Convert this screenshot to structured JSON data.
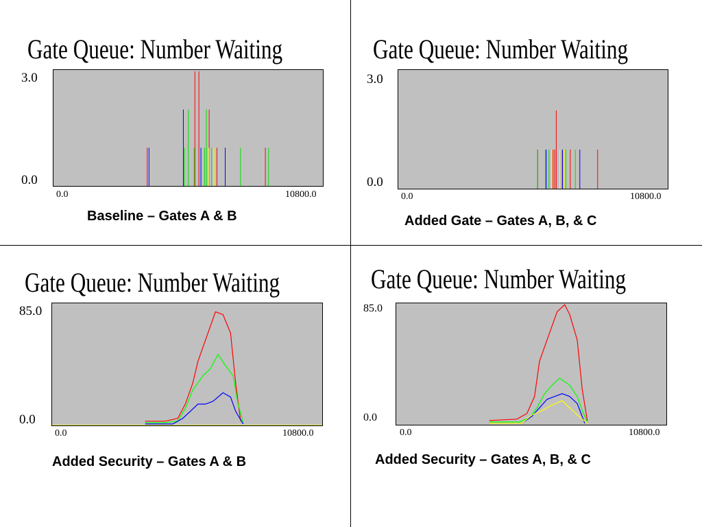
{
  "chart_data": [
    {
      "type": "line",
      "style": "spikes",
      "title": "Gate Queue: Number Waiting",
      "caption": "Baseline – Gates A & B",
      "ytick_top": "3.0",
      "ytick_bottom": "0.0",
      "xtick_left": "0.0",
      "xtick_right": "10800.0",
      "xlim": [
        0,
        10800
      ],
      "ylim": [
        0,
        3
      ],
      "series": [
        {
          "color": "#ff0000",
          "spikes": [
            [
              3740,
              1
            ],
            [
              5640,
              3
            ],
            [
              5800,
              3
            ],
            [
              6210,
              2
            ],
            [
              6520,
              1
            ],
            [
              8450,
              1
            ]
          ]
        },
        {
          "color": "#00e000",
          "spikes": [
            [
              5220,
              1
            ],
            [
              5380,
              2
            ],
            [
              5610,
              1
            ],
            [
              6030,
              1
            ],
            [
              6100,
              2
            ],
            [
              6310,
              1
            ],
            [
              7460,
              1
            ],
            [
              8580,
              1
            ]
          ]
        },
        {
          "color": "#0000ff",
          "spikes": [
            [
              3810,
              1
            ],
            [
              5180,
              2
            ],
            [
              5880,
              1
            ],
            [
              6850,
              1
            ]
          ]
        },
        {
          "color": "#ffff00",
          "spikes": [
            [
              6200,
              1
            ],
            [
              6400,
              1
            ]
          ]
        }
      ]
    },
    {
      "type": "line",
      "style": "spikes",
      "title": "Gate Queue: Number Waiting",
      "caption": "Added Gate – Gates A, B, & C",
      "ytick_top": "3.0",
      "ytick_bottom": "0.0",
      "xtick_left": "0.0",
      "xtick_right": "10800.0",
      "xlim": [
        0,
        10800
      ],
      "ylim": [
        0,
        3
      ],
      "series": [
        {
          "color": "#ff0000",
          "spikes": [
            [
              5560,
              1
            ],
            [
              6170,
              1
            ],
            [
              6240,
              1
            ],
            [
              6540,
              1
            ],
            [
              6860,
              1
            ],
            [
              7950,
              1
            ],
            [
              6300,
              2
            ]
          ]
        },
        {
          "color": "#00e000",
          "spikes": [
            [
              5550,
              1
            ],
            [
              5870,
              1
            ],
            [
              6010,
              1
            ],
            [
              6680,
              1
            ],
            [
              7060,
              1
            ]
          ]
        },
        {
          "color": "#0000ff",
          "spikes": [
            [
              5900,
              1
            ],
            [
              6550,
              1
            ],
            [
              7240,
              1
            ]
          ]
        },
        {
          "color": "#ffff00",
          "spikes": [
            [
              6120,
              1
            ],
            [
              6440,
              1
            ],
            [
              6620,
              1
            ]
          ]
        }
      ]
    },
    {
      "type": "line",
      "title": "Gate Queue: Number Waiting",
      "caption": "Added Security – Gates A & B",
      "ytick_top": "85.0",
      "ytick_bottom": "0.0",
      "xtick_left": "0.0",
      "xtick_right": "10800.0",
      "xlim": [
        0,
        10800
      ],
      "ylim": [
        0,
        85
      ],
      "series": [
        {
          "color": "#ff0000",
          "x": [
            3700,
            4500,
            5000,
            5300,
            5600,
            5800,
            6000,
            6200,
            6500,
            6800,
            7100,
            7300,
            7500
          ],
          "y": [
            3,
            3,
            5,
            15,
            30,
            45,
            55,
            65,
            80,
            78,
            65,
            30,
            3
          ]
        },
        {
          "color": "#00ff00",
          "x": [
            3700,
            4500,
            5000,
            5300,
            5600,
            5800,
            6000,
            6300,
            6600,
            6900,
            7200,
            7400,
            7600
          ],
          "y": [
            2,
            2,
            3,
            12,
            25,
            30,
            35,
            40,
            50,
            42,
            35,
            15,
            2
          ]
        },
        {
          "color": "#0000ff",
          "x": [
            3700,
            4800,
            5200,
            5500,
            5800,
            6100,
            6400,
            6800,
            7100,
            7300,
            7600
          ],
          "y": [
            1,
            1,
            5,
            10,
            15,
            15,
            17,
            23,
            20,
            10,
            1
          ]
        },
        {
          "color": "#ffff00",
          "x": [
            0,
            3000,
            7800,
            10800
          ],
          "y": [
            0,
            0,
            0,
            0
          ]
        }
      ]
    },
    {
      "type": "line",
      "title": "Gate Queue: Number Waiting",
      "caption": "Added Security – Gates A, B, & C",
      "ytick_top": "85.0",
      "ytick_bottom": "0.0",
      "xtick_left": "0.0",
      "xtick_right": "10800.0",
      "xlim": [
        0,
        10800
      ],
      "ylim": [
        0,
        85
      ],
      "series": [
        {
          "color": "#ff0000",
          "x": [
            3700,
            4800,
            5200,
            5500,
            5700,
            5900,
            6200,
            6400,
            6700,
            6900,
            7200,
            7400,
            7600
          ],
          "y": [
            3,
            4,
            8,
            20,
            45,
            55,
            70,
            80,
            85,
            78,
            60,
            25,
            3
          ]
        },
        {
          "color": "#00ff00",
          "x": [
            3700,
            4900,
            5300,
            5600,
            5900,
            6200,
            6500,
            6900,
            7200,
            7400,
            7600
          ],
          "y": [
            2,
            2,
            5,
            12,
            22,
            28,
            33,
            28,
            20,
            10,
            2
          ]
        },
        {
          "color": "#0000ff",
          "x": [
            3700,
            5000,
            5400,
            5700,
            6000,
            6300,
            6600,
            6900,
            7200,
            7500
          ],
          "y": [
            1,
            1,
            6,
            12,
            18,
            20,
            22,
            20,
            15,
            1
          ]
        },
        {
          "color": "#ffff00",
          "x": [
            3700,
            5000,
            5400,
            5800,
            6200,
            6600,
            6900,
            7200,
            7600
          ],
          "y": [
            1,
            1,
            7,
            10,
            14,
            17,
            12,
            7,
            1
          ]
        }
      ]
    }
  ]
}
